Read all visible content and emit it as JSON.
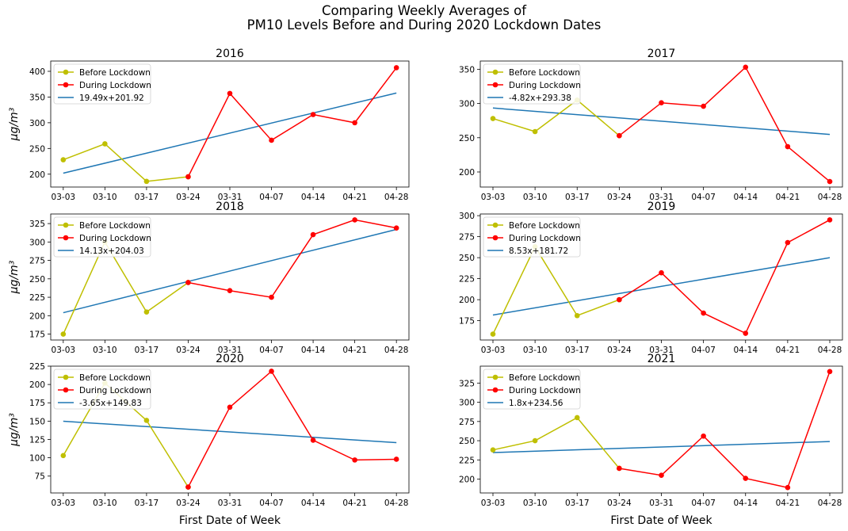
{
  "suptitle": {
    "line1": "Comparing Weekly Averages of",
    "line2": "PM10 Levels Before and During 2020 Lockdown Dates"
  },
  "xlabel": "First Date of Week",
  "ylabel": "μg/m³",
  "colors": {
    "before": "#bfbf00",
    "during": "#ff0000",
    "trend": "#1f77b4"
  },
  "chart_data": [
    {
      "type": "line",
      "title": "2016",
      "categories": [
        "03-03",
        "03-10",
        "03-17",
        "03-24",
        "03-31",
        "04-07",
        "04-14",
        "04-21",
        "04-28"
      ],
      "before_lockdown": [
        228,
        259,
        186,
        195
      ],
      "during_lockdown": [
        195,
        357,
        266,
        316,
        300,
        407
      ],
      "trend": {
        "label": "19.49x+201.92",
        "slope": 19.49,
        "intercept": 201.92
      },
      "ylim": [
        175,
        420
      ],
      "yticks": [
        200,
        250,
        300,
        350,
        400
      ],
      "legend": [
        "Before Lockdown",
        "During Lockdown",
        "19.49x+201.92"
      ],
      "legend_position": "top-left"
    },
    {
      "type": "line",
      "title": "2017",
      "categories": [
        "03-03",
        "03-10",
        "03-17",
        "03-24",
        "03-31",
        "04-07",
        "04-14",
        "04-21",
        "04-28"
      ],
      "before_lockdown": [
        278,
        259,
        305,
        253
      ],
      "during_lockdown": [
        253,
        301,
        296,
        353,
        237,
        186
      ],
      "trend": {
        "label": "-4.82x+293.38",
        "slope": -4.82,
        "intercept": 293.38
      },
      "ylim": [
        178,
        362
      ],
      "yticks": [
        200,
        250,
        300,
        350
      ],
      "legend": [
        "Before Lockdown",
        "During Lockdown",
        "-4.82x+293.38"
      ],
      "legend_position": "top-left"
    },
    {
      "type": "line",
      "title": "2018",
      "categories": [
        "03-03",
        "03-10",
        "03-17",
        "03-24",
        "03-31",
        "04-07",
        "04-14",
        "04-21",
        "04-28"
      ],
      "before_lockdown": [
        175,
        300,
        205,
        245
      ],
      "during_lockdown": [
        245,
        234,
        225,
        310,
        330,
        319
      ],
      "trend": {
        "label": "14.13x+204.03",
        "slope": 14.13,
        "intercept": 204.03
      },
      "ylim": [
        167,
        338
      ],
      "yticks": [
        175,
        200,
        225,
        250,
        275,
        300,
        325
      ],
      "legend": [
        "Before Lockdown",
        "During Lockdown",
        "14.13x+204.03"
      ],
      "legend_position": "top-left"
    },
    {
      "type": "line",
      "title": "2019",
      "categories": [
        "03-03",
        "03-10",
        "03-17",
        "03-24",
        "03-31",
        "04-07",
        "04-14",
        "04-21",
        "04-28"
      ],
      "before_lockdown": [
        159,
        263,
        181,
        200
      ],
      "during_lockdown": [
        200,
        232,
        184,
        160,
        268,
        295
      ],
      "trend": {
        "label": "8.53x+181.72",
        "slope": 8.53,
        "intercept": 181.72
      },
      "ylim": [
        152,
        302
      ],
      "yticks": [
        175,
        200,
        225,
        250,
        275,
        300
      ],
      "legend": [
        "Before Lockdown",
        "During Lockdown",
        "8.53x+181.72"
      ],
      "legend_position": "top-left"
    },
    {
      "type": "line",
      "title": "2020",
      "categories": [
        "03-03",
        "03-10",
        "03-17",
        "03-24",
        "03-31",
        "04-07",
        "04-14",
        "04-21",
        "04-28"
      ],
      "before_lockdown": [
        103,
        202,
        151,
        60
      ],
      "during_lockdown": [
        60,
        169,
        218,
        124,
        97,
        98
      ],
      "trend": {
        "label": "-3.65x+149.83",
        "slope": -3.65,
        "intercept": 149.83
      },
      "ylim": [
        52,
        225
      ],
      "yticks": [
        75,
        100,
        125,
        150,
        175,
        200,
        225
      ],
      "legend": [
        "Before Lockdown",
        "During Lockdown",
        "-3.65x+149.83"
      ],
      "legend_position": "top-left"
    },
    {
      "type": "line",
      "title": "2021",
      "categories": [
        "03-03",
        "03-10",
        "03-17",
        "03-24",
        "03-31",
        "04-07",
        "04-14",
        "04-21",
        "04-28"
      ],
      "before_lockdown": [
        238,
        250,
        280,
        214
      ],
      "during_lockdown": [
        214,
        205,
        256,
        201,
        189,
        340
      ],
      "trend": {
        "label": "1.8x+234.56",
        "slope": 1.8,
        "intercept": 234.56
      },
      "ylim": [
        182,
        347
      ],
      "yticks": [
        200,
        225,
        250,
        275,
        300,
        325
      ],
      "legend": [
        "Before Lockdown",
        "During Lockdown",
        "1.8x+234.56"
      ],
      "legend_position": "top-left"
    }
  ]
}
